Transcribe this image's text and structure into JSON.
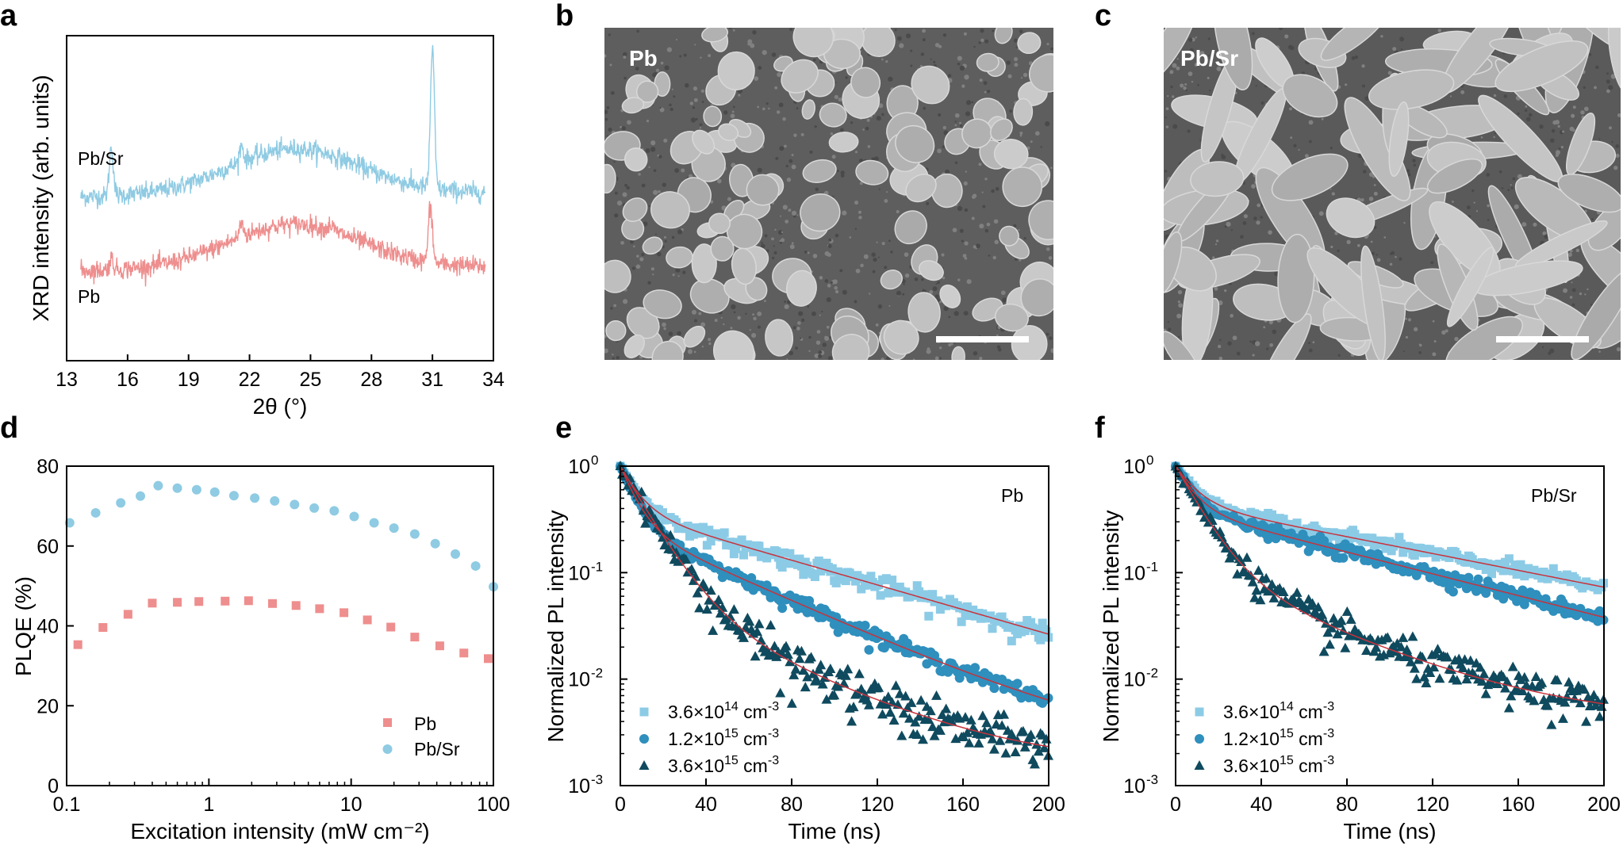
{
  "panels": {
    "a": "a",
    "b": "b",
    "c": "c",
    "d": "d",
    "e": "e",
    "f": "f"
  },
  "sem": {
    "b_label": "Pb",
    "c_label": "Pb/Sr"
  },
  "colors": {
    "blue_light": "#8fcbe3",
    "red_light": "#ee8e8e",
    "e_light": "#8ccbe6",
    "e_mid": "#2f8fbd",
    "e_dark": "#0f4a5e",
    "fit": "#c8323c",
    "sem_bg": "#5e5e5e",
    "sem_grain": "#b8b8b8"
  },
  "chart_data": [
    {
      "id": "a",
      "type": "line",
      "xlabel": "2θ (°)",
      "ylabel": "XRD intensity (arb. units)",
      "xlim": [
        13,
        34
      ],
      "xticks": [
        "13",
        "16",
        "19",
        "22",
        "25",
        "28",
        "31",
        "34"
      ],
      "series_labels": [
        "Pb/Sr",
        "Pb"
      ],
      "series": [
        {
          "name": "Pb/Sr",
          "color": "#8fcbe3",
          "baseline": 0.53,
          "hump": 0.33,
          "peaks": [
            [
              15.2,
              0.35
            ],
            [
              21.6,
              0.12
            ],
            [
              31.0,
              1.0
            ]
          ]
        },
        {
          "name": "Pb",
          "color": "#ee8e8e",
          "baseline": 0.0,
          "hump": 0.32,
          "peaks": [
            [
              15.2,
              0.08
            ],
            [
              21.6,
              0.1
            ],
            [
              26.0,
              0.04
            ],
            [
              30.9,
              0.4
            ]
          ]
        }
      ]
    },
    {
      "id": "d",
      "type": "scatter",
      "xlabel": "Excitation intensity (mW cm⁻²)",
      "ylabel": "PLQE (%)",
      "xscale": "log",
      "xlim": [
        0.1,
        100
      ],
      "ylim": [
        0,
        80
      ],
      "xticks": [
        "0.1",
        "1",
        "10",
        "100"
      ],
      "yticks": [
        "0",
        "20",
        "40",
        "60",
        "80"
      ],
      "legend": [
        "Pb",
        "Pb/Sr"
      ],
      "series": [
        {
          "name": "Pb",
          "marker": "square",
          "color": "#ee8e8e",
          "x": [
            0.12,
            0.18,
            0.27,
            0.4,
            0.6,
            0.85,
            1.3,
            1.9,
            2.8,
            4.1,
            6.0,
            8.9,
            13,
            19,
            28,
            42,
            62,
            92
          ],
          "y": [
            35.3,
            39.6,
            42.9,
            45.7,
            45.9,
            46.1,
            46.2,
            46.3,
            45.6,
            45.1,
            44.3,
            43.3,
            41.5,
            39.7,
            37.2,
            35.0,
            33.2,
            31.8
          ]
        },
        {
          "name": "Pb/Sr",
          "marker": "circle",
          "color": "#8fcbe3",
          "x": [
            0.105,
            0.16,
            0.24,
            0.33,
            0.44,
            0.6,
            0.82,
            1.1,
            1.5,
            2.1,
            2.9,
            4.0,
            5.5,
            7.6,
            10.5,
            14.5,
            20,
            28,
            39,
            54,
            75,
            100
          ],
          "y": [
            65.8,
            68.3,
            70.8,
            72.5,
            75.1,
            74.5,
            74.1,
            73.5,
            72.6,
            72.0,
            71.3,
            70.4,
            69.5,
            68.8,
            67.4,
            65.8,
            64.5,
            63.0,
            60.6,
            58.0,
            55.0,
            49.8
          ]
        }
      ]
    },
    {
      "id": "e",
      "type": "scatter",
      "xlabel": "Time (ns)",
      "ylabel": "Normalized PL intensity",
      "yscale": "log",
      "xlim": [
        0,
        200
      ],
      "ylim": [
        0.001,
        1
      ],
      "xticks": [
        "0",
        "40",
        "80",
        "120",
        "160",
        "200"
      ],
      "annotation": "Pb",
      "legend": [
        {
          "pre": "3.6×10",
          "exp": "14",
          "unit": " cm",
          "uexp": "-3"
        },
        {
          "pre": "1.2×10",
          "exp": "15",
          "unit": " cm",
          "uexp": "-3"
        },
        {
          "pre": "3.6×10",
          "exp": "15",
          "unit": " cm",
          "uexp": "-3"
        }
      ],
      "series": [
        {
          "name": "3.6×10^14 cm^-3",
          "marker": "square",
          "color": "#8ccbe6",
          "A": [
            0.62,
            0.38
          ],
          "tau": [
            8,
            75
          ],
          "C": 0,
          "noise": 0.1
        },
        {
          "name": "1.2×10^15 cm^-3",
          "marker": "circle",
          "color": "#2f8fbd",
          "A": [
            0.72,
            0.28
          ],
          "tau": [
            7,
            48
          ],
          "C": 0.002,
          "noise": 0.08
        },
        {
          "name": "3.6×10^15 cm^-3",
          "marker": "triangle",
          "color": "#0f4a5e",
          "A": [
            0.93,
            0.07
          ],
          "tau": [
            12,
            45
          ],
          "C": 0.0015,
          "noise": 0.25
        }
      ]
    },
    {
      "id": "f",
      "type": "scatter",
      "xlabel": "Time (ns)",
      "ylabel": "Normalized PL intensity",
      "yscale": "log",
      "xlim": [
        0,
        200
      ],
      "ylim": [
        0.001,
        1
      ],
      "xticks": [
        "0",
        "40",
        "80",
        "120",
        "160",
        "200"
      ],
      "annotation": "Pb/Sr",
      "legend": [
        {
          "pre": "3.6×10",
          "exp": "14",
          "unit": " cm",
          "uexp": "-3"
        },
        {
          "pre": "1.2×10",
          "exp": "15",
          "unit": " cm",
          "uexp": "-3"
        },
        {
          "pre": "3.6×10",
          "exp": "15",
          "unit": " cm",
          "uexp": "-3"
        }
      ],
      "series": [
        {
          "name": "3.6×10^14 cm^-3",
          "marker": "square",
          "color": "#8ccbe6",
          "A": [
            0.55,
            0.45
          ],
          "tau": [
            9,
            110
          ],
          "C": 0,
          "noise": 0.08
        },
        {
          "name": "1.2×10^15 cm^-3",
          "marker": "circle",
          "color": "#2f8fbd",
          "A": [
            0.6,
            0.4
          ],
          "tau": [
            8,
            85
          ],
          "C": 0,
          "noise": 0.08
        },
        {
          "name": "3.6×10^15 cm^-3",
          "marker": "triangle",
          "color": "#0f4a5e",
          "A": [
            0.88,
            0.12
          ],
          "tau": [
            11,
            48
          ],
          "C": 0.004,
          "noise": 0.2
        }
      ]
    }
  ]
}
